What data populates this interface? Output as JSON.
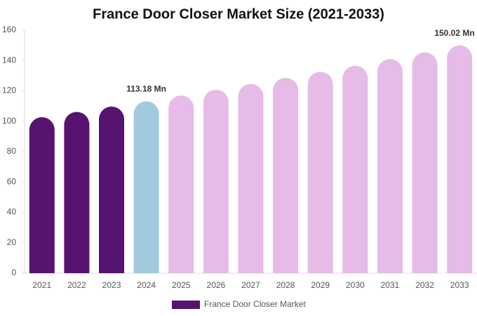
{
  "chart_data": {
    "type": "bar",
    "title": "France Door Closer Market Size (2021-2033)",
    "categories": [
      "2021",
      "2022",
      "2023",
      "2024",
      "2025",
      "2026",
      "2027",
      "2028",
      "2029",
      "2030",
      "2031",
      "2032",
      "2033"
    ],
    "series": [
      {
        "name": "France Door Closer Market",
        "color": "#56136f",
        "values": [
          102.7,
          106.2,
          109.7,
          113.18,
          117.0,
          120.8,
          124.6,
          128.6,
          132.6,
          136.6,
          141.0,
          145.4,
          150.02
        ],
        "value_labels": [
          null,
          null,
          null,
          "113.18 Mn",
          null,
          null,
          null,
          null,
          null,
          null,
          null,
          null,
          "150.02 Mn"
        ],
        "colors": [
          "#56136f",
          "#56136f",
          "#56136f",
          "#a3c9df",
          "#e6bbe8",
          "#e6bbe8",
          "#e6bbe8",
          "#e6bbe8",
          "#e6bbe8",
          "#e6bbe8",
          "#e6bbe8",
          "#e6bbe8",
          "#e6bbe8"
        ]
      }
    ],
    "ylim": [
      0,
      160
    ],
    "yticks": [
      0,
      20,
      40,
      60,
      80,
      100,
      120,
      140,
      160
    ],
    "grid": false,
    "legend": "bottom"
  }
}
